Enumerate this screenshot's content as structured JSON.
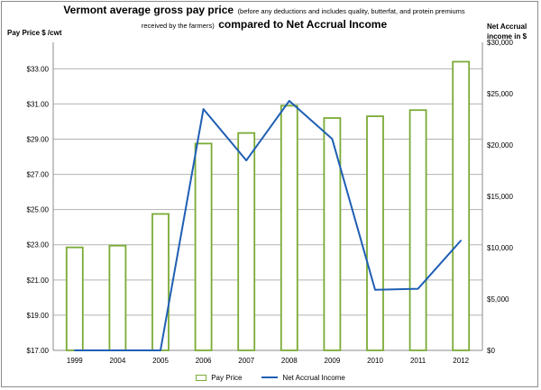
{
  "chart_data": {
    "type": "bar",
    "title_bold_1": "Vermont average gross pay price",
    "title_small": "(before any deductions and includes quality, butterfat, and protein premiums received by the farmers)",
    "title_bold_2": "compared to Net Accrual Income",
    "ylabel": "Pay Price $ /cwt",
    "y2label_line1": "Net Accrual",
    "y2label_line2": "income in $",
    "categories": [
      "1999",
      "2004",
      "2005",
      "2006",
      "2007",
      "2008",
      "2009",
      "2010",
      "2011",
      "2012"
    ],
    "ylim": [
      17,
      34.5
    ],
    "yticks": [
      "$17.00",
      "$19.00",
      "$21.00",
      "$23.00",
      "$25.00",
      "$27.00",
      "$29.00",
      "$31.00",
      "$33.00"
    ],
    "y2lim": [
      0,
      30000
    ],
    "y2ticks": [
      "$0",
      "$5,000",
      "$10,000",
      "$15,000",
      "$20,000",
      "$25,000",
      "$30,000"
    ],
    "grid": true,
    "legend_position": "bottom",
    "series": [
      {
        "name": "Pay Price",
        "type": "bar",
        "axis": "left",
        "color": "#7aab36",
        "values": [
          22.85,
          22.95,
          24.75,
          28.75,
          29.35,
          30.9,
          30.2,
          30.3,
          30.65,
          33.4
        ]
      },
      {
        "name": "Net Accrual Income",
        "type": "line",
        "axis": "right",
        "color": "#1f5fb4",
        "values": [
          0,
          0,
          0,
          23500,
          18500,
          24300,
          20600,
          5900,
          6000,
          10700
        ]
      }
    ]
  }
}
